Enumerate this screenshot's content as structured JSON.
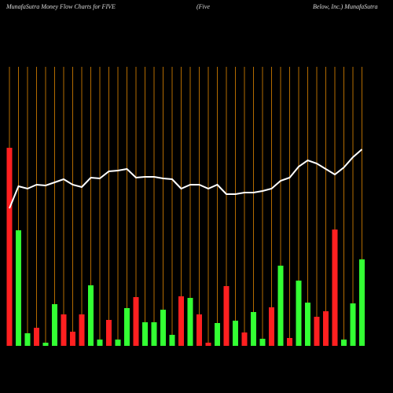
{
  "chart_data": {
    "type": "bar",
    "title": "MunafaSutra  Money Flow  Charts for FIVE",
    "title_middle": "(Five",
    "title_right": "Below, Inc.) MunafaSutra",
    "values": [
      252,
      147,
      16,
      23,
      4,
      53,
      40,
      18,
      40,
      77,
      8,
      33,
      8,
      48,
      62,
      30,
      30,
      46,
      14,
      63,
      61,
      40,
      4,
      29,
      76,
      32,
      17,
      43,
      9,
      49,
      102,
      10,
      83,
      55,
      37,
      44,
      148,
      8,
      54,
      110
    ],
    "colors": [
      "#ff2020",
      "#33ff33",
      "#33ff33",
      "#ff2020",
      "#33ff33",
      "#33ff33",
      "#ff2020",
      "#ff2020",
      "#ff2020",
      "#33ff33",
      "#33ff33",
      "#ff2020",
      "#33ff33",
      "#33ff33",
      "#ff2020",
      "#33ff33",
      "#33ff33",
      "#33ff33",
      "#33ff33",
      "#ff2020",
      "#33ff33",
      "#ff2020",
      "#ff2020",
      "#33ff33",
      "#ff2020",
      "#33ff33",
      "#ff2020",
      "#33ff33",
      "#33ff33",
      "#ff2020",
      "#33ff33",
      "#ff2020",
      "#33ff33",
      "#33ff33",
      "#ff2020",
      "#ff2020",
      "#ff2020",
      "#33ff33",
      "#33ff33",
      "#33ff33"
    ],
    "line": {
      "color": "#ffffff",
      "values": [
        175,
        203,
        200,
        205,
        204,
        208,
        212,
        205,
        202,
        214,
        213,
        222,
        223,
        225,
        214,
        215,
        215,
        213,
        212,
        200,
        205,
        205,
        200,
        205,
        193,
        193,
        195,
        195,
        197,
        200,
        210,
        214,
        228,
        236,
        232,
        225,
        218,
        227,
        240,
        250
      ]
    },
    "ylim": [
      0,
      440
    ],
    "gridline_color": "#b36b00"
  }
}
